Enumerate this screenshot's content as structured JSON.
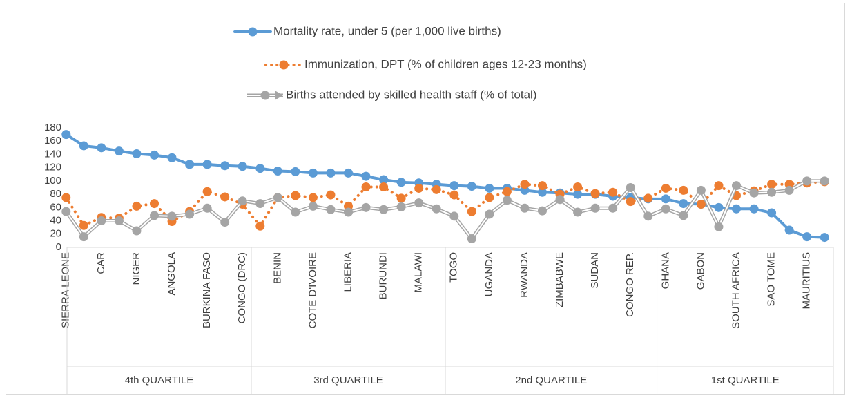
{
  "chart_data": {
    "type": "line",
    "categories": [
      "SIERRA LEONE",
      null,
      "CAR",
      null,
      "NIGER",
      null,
      "ANGOLA",
      null,
      "BURKINA FASO",
      null,
      "CONGO (DRC)",
      null,
      "BENIN",
      null,
      "COTE D'IVOIRE",
      null,
      "LIBERIA",
      null,
      "BURUNDI",
      null,
      "MALAWI",
      null,
      "TOGO",
      null,
      "UGANDA",
      null,
      "RWANDA",
      null,
      "ZIMBABWE",
      null,
      "SUDAN",
      null,
      "CONGO REP.",
      null,
      "GHANA",
      null,
      "GABON",
      null,
      "SOUTH AFRICA",
      null,
      "SAO TOME",
      null,
      "MAURITIUS",
      null
    ],
    "groups": [
      {
        "label": "4th QUARTILE",
        "count": 11
      },
      {
        "label": "3rd QUARTILE",
        "count": 11
      },
      {
        "label": "2nd QUARTILE",
        "count": 12
      },
      {
        "label": "1st QUARTILE",
        "count": 10
      }
    ],
    "series": [
      {
        "name": "Mortality rate, under 5 (per 1,000 live births)",
        "color": "#5b9bd5",
        "style": "solid",
        "values": [
          170,
          153,
          150,
          145,
          141,
          139,
          135,
          125,
          125,
          123,
          122,
          119,
          115,
          114,
          112,
          112,
          112,
          107,
          102,
          98,
          97,
          95,
          93,
          92,
          89,
          89,
          86,
          83,
          82,
          80,
          80,
          77,
          75,
          73,
          73,
          66,
          65,
          60,
          58,
          58,
          52,
          26,
          16,
          15
        ]
      },
      {
        "name": "Immunization, DPT (% of children ages 12-23 months)",
        "color": "#ed7d31",
        "style": "dotted",
        "values": [
          75,
          33,
          45,
          44,
          62,
          66,
          39,
          54,
          84,
          76,
          65,
          32,
          75,
          78,
          75,
          79,
          62,
          91,
          91,
          74,
          89,
          87,
          79,
          54,
          75,
          84,
          95,
          93,
          80,
          91,
          81,
          83,
          69,
          74,
          89,
          86,
          65,
          93,
          78,
          85,
          95,
          95,
          97,
          99
        ]
      },
      {
        "name": "Births attended by skilled health staff (% of total)",
        "color": "#a5a5a5",
        "style": "double",
        "values": [
          54,
          16,
          40,
          40,
          25,
          48,
          47,
          50,
          59,
          38,
          70,
          66,
          75,
          53,
          62,
          57,
          53,
          60,
          57,
          61,
          67,
          58,
          47,
          13,
          50,
          71,
          59,
          55,
          72,
          53,
          59,
          59,
          90,
          47,
          58,
          48,
          86,
          31,
          93,
          82,
          83,
          86,
          100,
          100
        ]
      }
    ],
    "ylim": [
      0,
      180
    ],
    "yticks": [
      0,
      20,
      40,
      60,
      80,
      100,
      120,
      140,
      160,
      180
    ],
    "grid": false,
    "legend": "top"
  }
}
